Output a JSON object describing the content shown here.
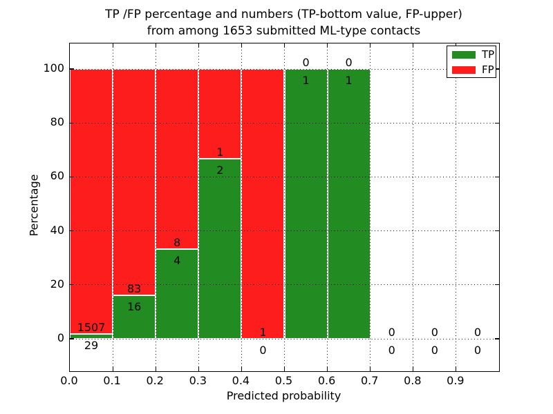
{
  "title": {
    "line1": "TP /FP percentage and numbers (TP-bottom value, FP-upper)",
    "line2": "from among 1653 submitted ML-type contacts"
  },
  "axes": {
    "x": {
      "label": "Predicted probability",
      "tick_labels": [
        "0.0",
        "0.1",
        "0.2",
        "0.3",
        "0.4",
        "0.5",
        "0.6",
        "0.7",
        "0.8",
        "0.9"
      ],
      "range": [
        0.0,
        1.0
      ]
    },
    "y": {
      "label": "Percentage",
      "tick_labels": [
        "0",
        "20",
        "40",
        "60",
        "80",
        "100"
      ],
      "tick_values": [
        0,
        20,
        40,
        60,
        80,
        100
      ]
    }
  },
  "legend": {
    "position": "upper right",
    "items": [
      {
        "label": "TP",
        "color": "#228b22"
      },
      {
        "label": "FP",
        "color": "#fd1d1d"
      }
    ]
  },
  "chart_data": {
    "type": "bar",
    "stacked": true,
    "normalized_to_percent_per_bin": true,
    "title": "TP /FP percentage and numbers (TP-bottom value, FP-upper) from among 1653 submitted ML-type contacts",
    "xlabel": "Predicted probability",
    "ylabel": "Percentage",
    "total_contacts": 1653,
    "bin_edges": [
      0.0,
      0.1,
      0.2,
      0.3,
      0.4,
      0.5,
      0.6,
      0.7,
      0.8,
      0.9,
      1.0
    ],
    "series": [
      {
        "name": "TP",
        "color": "#228b22",
        "counts": [
          29,
          16,
          4,
          2,
          0,
          1,
          1,
          0,
          0,
          0
        ]
      },
      {
        "name": "FP",
        "color": "#fd1d1d",
        "counts": [
          1507,
          83,
          8,
          1,
          1,
          0,
          0,
          0,
          0,
          0
        ]
      }
    ],
    "bar_heights_percent": {
      "TP": [
        1.89,
        16.16,
        33.33,
        66.67,
        0,
        100,
        100,
        0,
        0,
        0
      ],
      "FP": [
        98.11,
        83.84,
        66.67,
        33.33,
        100,
        0,
        0,
        0,
        0,
        0
      ]
    },
    "count_label_rule": "TP count below top of TP segment, FP count above it",
    "xlim": [
      0.0,
      1.0
    ],
    "ylim": [
      -12,
      110
    ],
    "grid": true,
    "grid_style": "dotted",
    "legend_position": "upper right"
  }
}
